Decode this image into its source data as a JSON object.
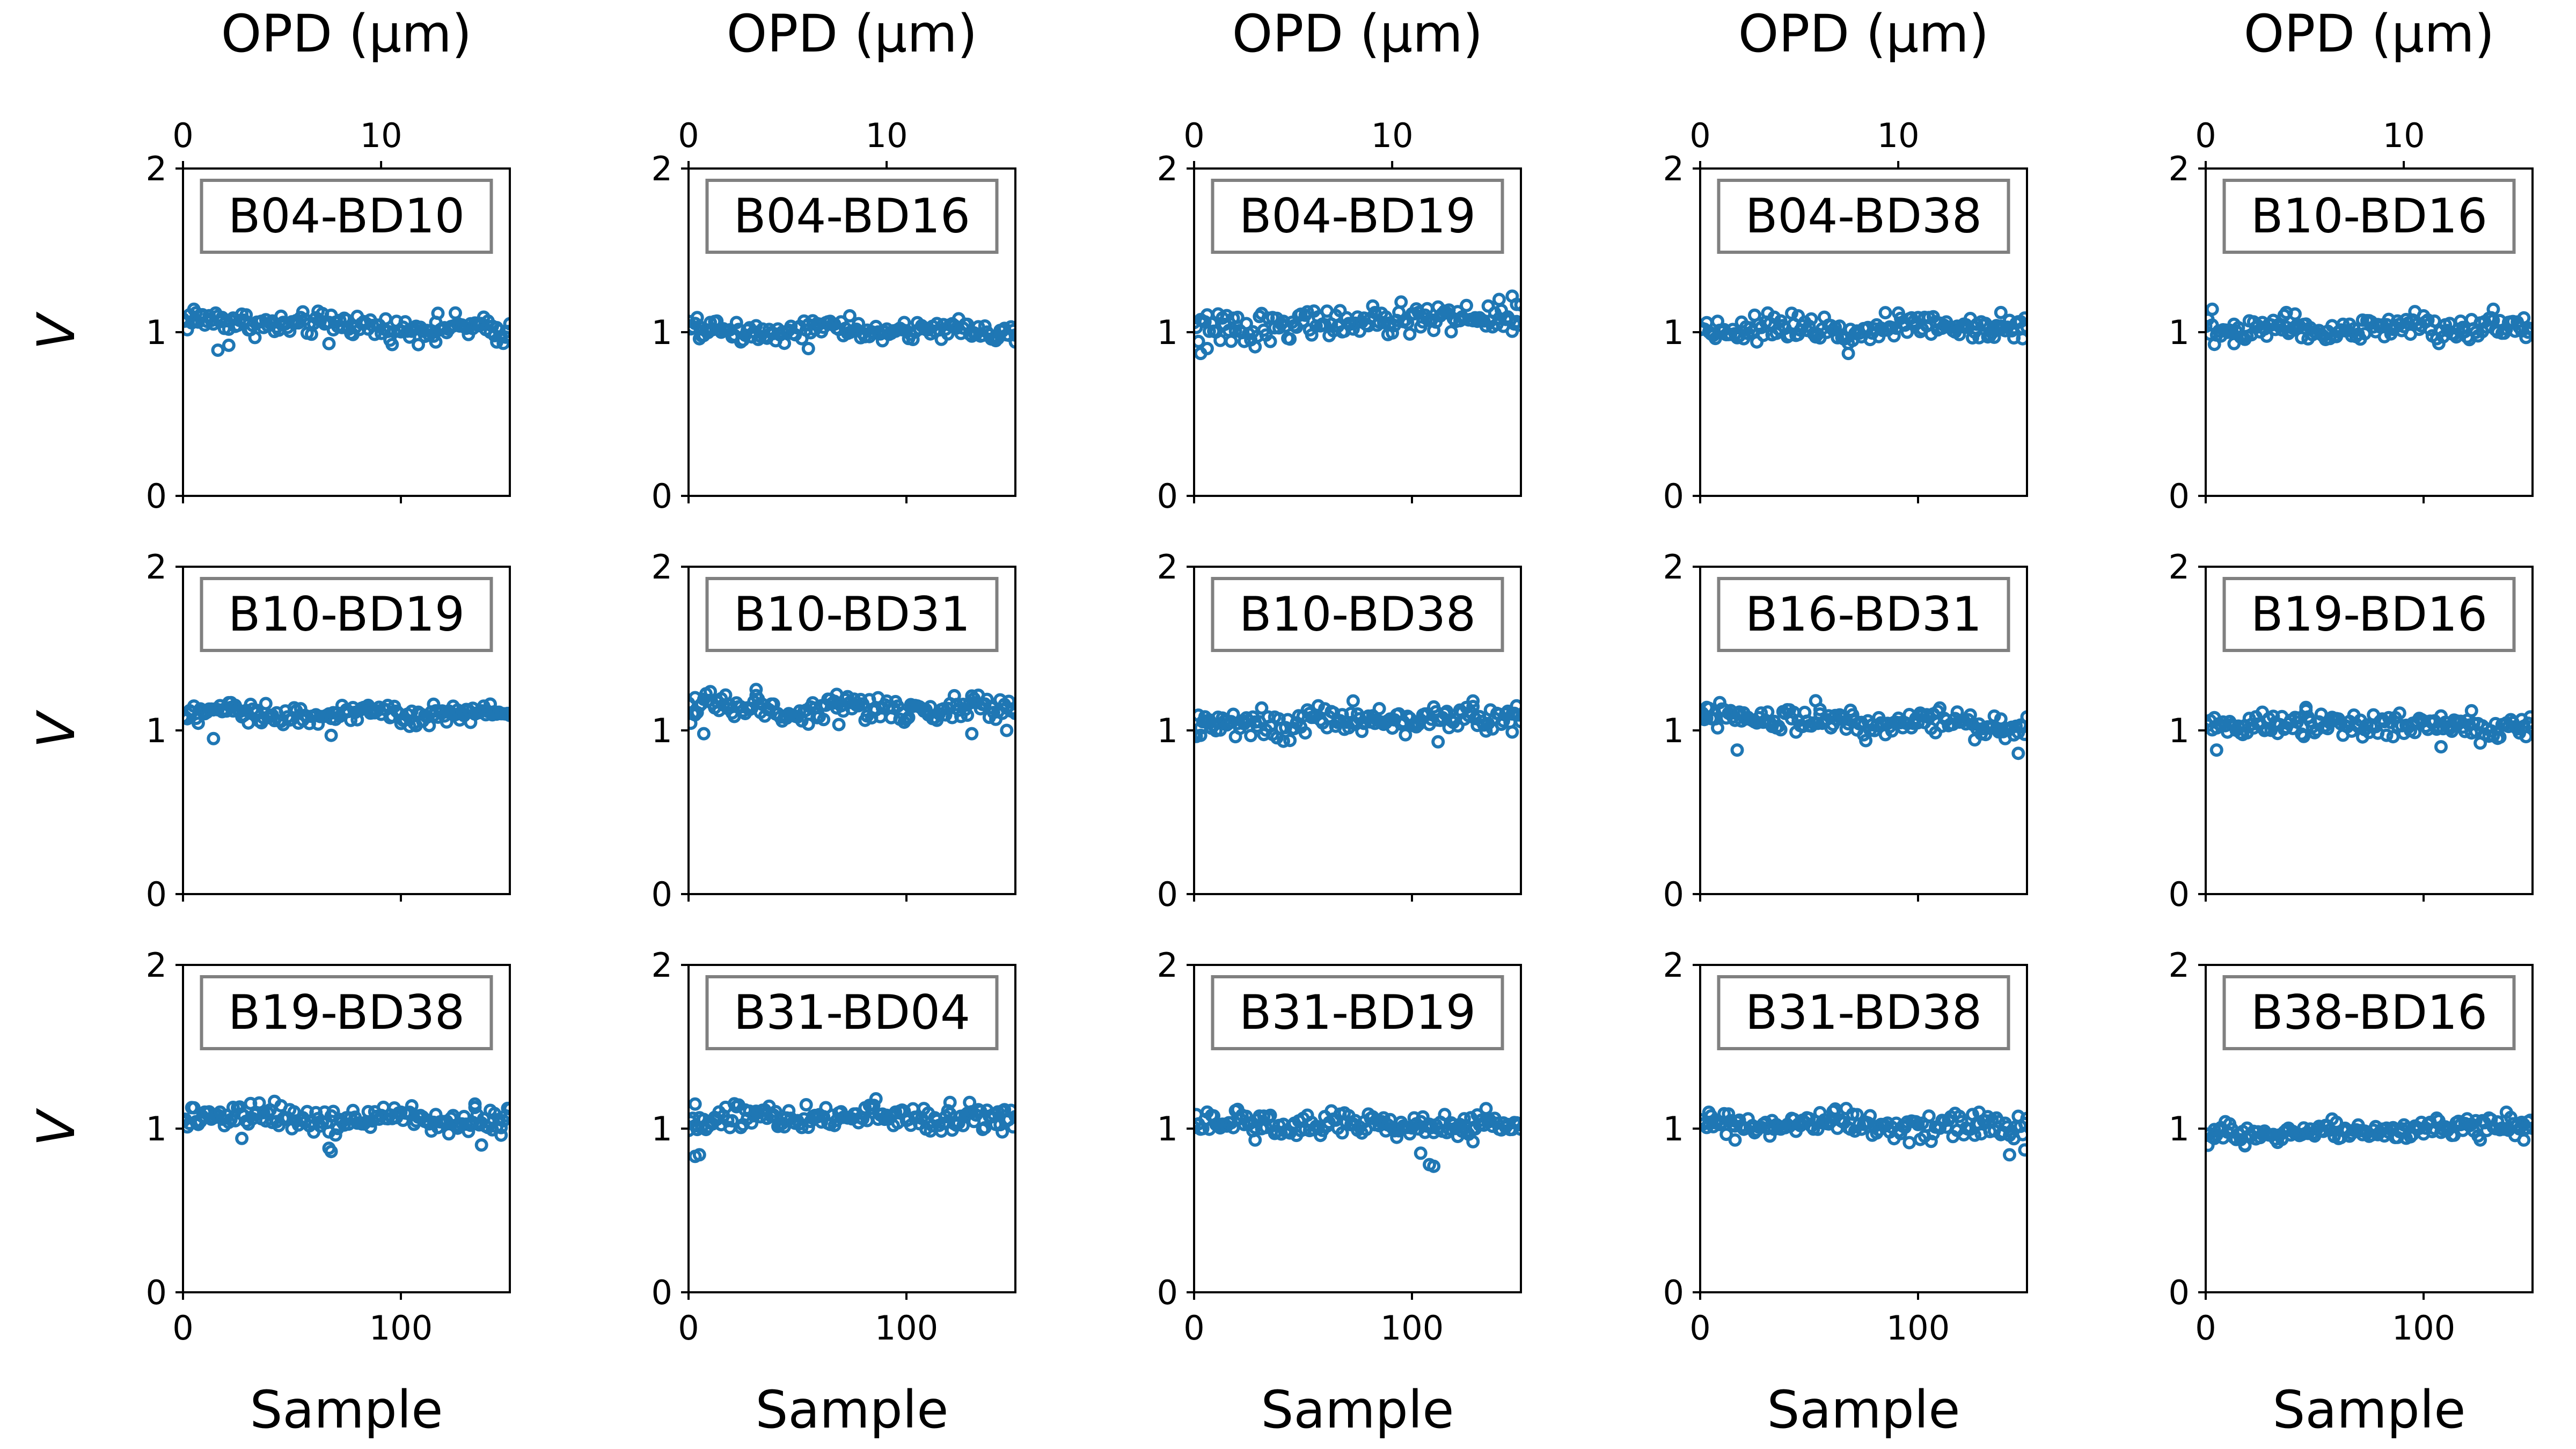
{
  "chart_data": {
    "type": "scatter",
    "layout": {
      "rows": 3,
      "cols": 5
    },
    "marker": {
      "style": "open-circle",
      "color": "#1f77b4"
    },
    "grid": false,
    "xlabel": "Sample",
    "ylabel": "V",
    "top_xlabel": "OPD (μm)",
    "xlim": [
      0,
      150
    ],
    "xticks": [
      0,
      100
    ],
    "top_xlim": [
      0,
      16.5
    ],
    "top_xticks": [
      0,
      10
    ],
    "ylim": [
      0,
      2
    ],
    "yticks": [
      0,
      1,
      2
    ],
    "panels": [
      {
        "label": "B04-BD10",
        "row": 0,
        "col": 0,
        "mean": 1.04,
        "trend": -0.06,
        "scatter": 0.035,
        "outliers": [
          [
            5,
            1.14
          ],
          [
            16,
            0.89
          ],
          [
            21,
            0.92
          ],
          [
            67,
            0.93
          ],
          [
            116,
            0.94
          ],
          [
            144,
            0.94
          ]
        ]
      },
      {
        "label": "B04-BD16",
        "row": 0,
        "col": 1,
        "mean": 1.01,
        "trend": 0.0,
        "scatter": 0.03,
        "outliers": [
          [
            5,
            0.96
          ],
          [
            55,
            0.9
          ],
          [
            74,
            1.1
          ],
          [
            150,
            0.94
          ]
        ]
      },
      {
        "label": "B04-BD19",
        "row": 0,
        "col": 2,
        "mean": 1.06,
        "trend": 0.08,
        "scatter": 0.045,
        "outliers": [
          [
            3,
            0.87
          ],
          [
            6,
            0.9
          ],
          [
            140,
            1.2
          ],
          [
            146,
            1.22
          ],
          [
            148,
            1.17
          ]
        ]
      },
      {
        "label": "B04-BD38",
        "row": 0,
        "col": 3,
        "mean": 1.03,
        "trend": 0.01,
        "scatter": 0.035,
        "outliers": [
          [
            45,
            1.1
          ],
          [
            68,
            0.87
          ],
          [
            138,
            1.12
          ],
          [
            148,
            0.96
          ]
        ]
      },
      {
        "label": "B10-BD16",
        "row": 0,
        "col": 4,
        "mean": 1.02,
        "trend": 0.01,
        "scatter": 0.04,
        "outliers": [
          [
            3,
            1.14
          ],
          [
            13,
            0.93
          ],
          [
            37,
            1.12
          ],
          [
            132,
            1.14
          ],
          [
            148,
            1.0
          ]
        ]
      },
      {
        "label": "B10-BD19",
        "row": 1,
        "col": 0,
        "mean": 1.1,
        "trend": 0.0,
        "scatter": 0.03,
        "outliers": [
          [
            14,
            0.95
          ],
          [
            68,
            0.97
          ],
          [
            22,
            1.17
          ],
          [
            115,
            1.16
          ]
        ]
      },
      {
        "label": "B10-BD31",
        "row": 1,
        "col": 1,
        "mean": 1.13,
        "trend": 0.0,
        "scatter": 0.04,
        "outliers": [
          [
            3,
            1.2
          ],
          [
            7,
            0.98
          ],
          [
            31,
            1.25
          ],
          [
            68,
            1.22
          ],
          [
            130,
            0.98
          ],
          [
            146,
            1.0
          ]
        ]
      },
      {
        "label": "B10-BD38",
        "row": 1,
        "col": 2,
        "mean": 1.06,
        "trend": 0.05,
        "scatter": 0.04,
        "outliers": [
          [
            3,
            0.97
          ],
          [
            73,
            1.18
          ],
          [
            112,
            0.93
          ],
          [
            128,
            1.18
          ],
          [
            146,
            0.99
          ]
        ]
      },
      {
        "label": "B16-BD31",
        "row": 1,
        "col": 3,
        "mean": 1.06,
        "trend": -0.07,
        "scatter": 0.04,
        "outliers": [
          [
            3,
            1.14
          ],
          [
            17,
            0.88
          ],
          [
            55,
            1.1
          ],
          [
            140,
            0.95
          ],
          [
            146,
            0.86
          ]
        ]
      },
      {
        "label": "B19-BD16",
        "row": 1,
        "col": 4,
        "mean": 1.03,
        "trend": 0.0,
        "scatter": 0.035,
        "outliers": [
          [
            5,
            0.88
          ],
          [
            46,
            1.14
          ],
          [
            108,
            0.9
          ],
          [
            122,
            1.12
          ]
        ]
      },
      {
        "label": "B19-BD38",
        "row": 2,
        "col": 0,
        "mean": 1.06,
        "trend": -0.02,
        "scatter": 0.035,
        "outliers": [
          [
            27,
            0.94
          ],
          [
            67,
            0.88
          ],
          [
            68,
            0.86
          ],
          [
            134,
            1.15
          ],
          [
            137,
            0.9
          ],
          [
            146,
            0.96
          ]
        ]
      },
      {
        "label": "B31-BD04",
        "row": 2,
        "col": 1,
        "mean": 1.07,
        "trend": 0.02,
        "scatter": 0.04,
        "outliers": [
          [
            3,
            0.83
          ],
          [
            5,
            0.84
          ],
          [
            3,
            1.15
          ],
          [
            120,
            1.16
          ],
          [
            144,
            0.98
          ]
        ]
      },
      {
        "label": "B31-BD19",
        "row": 2,
        "col": 2,
        "mean": 1.02,
        "trend": -0.01,
        "scatter": 0.035,
        "outliers": [
          [
            28,
            0.93
          ],
          [
            104,
            0.85
          ],
          [
            108,
            0.78
          ],
          [
            110,
            0.77
          ],
          [
            128,
            0.92
          ]
        ]
      },
      {
        "label": "B31-BD38",
        "row": 2,
        "col": 3,
        "mean": 1.02,
        "trend": 0.0,
        "scatter": 0.035,
        "outliers": [
          [
            4,
            1.1
          ],
          [
            16,
            0.93
          ],
          [
            142,
            0.84
          ],
          [
            128,
            1.1
          ],
          [
            149,
            0.87
          ]
        ]
      },
      {
        "label": "B38-BD16",
        "row": 2,
        "col": 4,
        "mean": 0.99,
        "trend": 0.07,
        "scatter": 0.035,
        "outliers": [
          [
            4,
            0.94
          ],
          [
            18,
            0.9
          ],
          [
            138,
            1.1
          ],
          [
            146,
            0.93
          ]
        ]
      }
    ]
  }
}
